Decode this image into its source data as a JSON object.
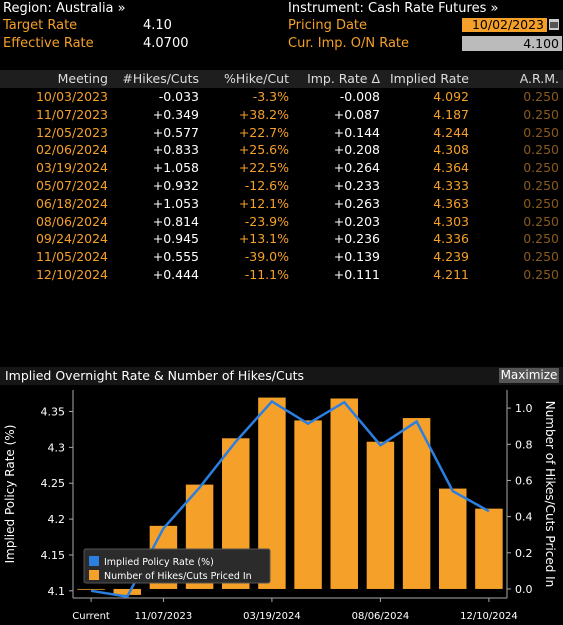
{
  "header": {
    "region_label": "Region: Australia »",
    "instrument_label": "Instrument: Cash Rate Futures »",
    "target_rate_label": "Target Rate",
    "target_rate_value": "4.10",
    "effective_rate_label": "Effective Rate",
    "effective_rate_value": "4.0700",
    "pricing_date_label": "Pricing Date",
    "pricing_date_value": "10/02/2023",
    "cur_imp_label": "Cur. Imp. O/N Rate",
    "cur_imp_value": "4.100"
  },
  "table": {
    "columns": [
      "Meeting",
      "#Hikes/Cuts",
      "%Hike/Cut",
      "Imp. Rate Δ",
      "Implied Rate",
      "A.R.M."
    ],
    "rows": [
      [
        "10/03/2023",
        "-0.033",
        "-3.3%",
        "-0.008",
        "4.092",
        "0.250"
      ],
      [
        "11/07/2023",
        "+0.349",
        "+38.2%",
        "+0.087",
        "4.187",
        "0.250"
      ],
      [
        "12/05/2023",
        "+0.577",
        "+22.7%",
        "+0.144",
        "4.244",
        "0.250"
      ],
      [
        "02/06/2024",
        "+0.833",
        "+25.6%",
        "+0.208",
        "4.308",
        "0.250"
      ],
      [
        "03/19/2024",
        "+1.058",
        "+22.5%",
        "+0.264",
        "4.364",
        "0.250"
      ],
      [
        "05/07/2024",
        "+0.932",
        "-12.6%",
        "+0.233",
        "4.333",
        "0.250"
      ],
      [
        "06/18/2024",
        "+1.053",
        "+12.1%",
        "+0.263",
        "4.363",
        "0.250"
      ],
      [
        "08/06/2024",
        "+0.814",
        "-23.9%",
        "+0.203",
        "4.303",
        "0.250"
      ],
      [
        "09/24/2024",
        "+0.945",
        "+13.1%",
        "+0.236",
        "4.336",
        "0.250"
      ],
      [
        "11/05/2024",
        "+0.555",
        "-39.0%",
        "+0.139",
        "4.239",
        "0.250"
      ],
      [
        "12/10/2024",
        "+0.444",
        "-11.1%",
        "+0.111",
        "4.211",
        "0.250"
      ]
    ]
  },
  "chart_panel": {
    "title": "Implied Overnight Rate & Number of Hikes/Cuts",
    "maximize_label": "Maximize"
  },
  "colors": {
    "orange": "#f5a028",
    "blue": "#2a7fe0",
    "background": "#000000"
  },
  "chart_data": {
    "type": "bar",
    "categories": [
      "Current",
      "10/03/2023",
      "11/07/2023",
      "12/05/2023",
      "02/06/2024",
      "03/19/2024",
      "05/07/2024",
      "06/18/2024",
      "08/06/2024",
      "09/24/2024",
      "11/05/2024",
      "12/10/2024"
    ],
    "x_tick_labels": [
      "Current",
      "11/07/2023",
      "03/19/2024",
      "08/06/2024",
      "12/10/2024"
    ],
    "series": [
      {
        "name": "Implied Policy Rate (%)",
        "kind": "line",
        "axis": "left",
        "color": "#2a7fe0",
        "values": [
          4.1,
          4.092,
          4.187,
          4.244,
          4.308,
          4.364,
          4.333,
          4.363,
          4.303,
          4.336,
          4.239,
          4.211
        ]
      },
      {
        "name": "Number of Hikes/Cuts Priced In",
        "kind": "bar",
        "axis": "right",
        "color": "#f5a028",
        "values": [
          0,
          -0.033,
          0.349,
          0.577,
          0.833,
          1.058,
          0.932,
          1.053,
          0.814,
          0.945,
          0.555,
          0.444
        ]
      }
    ],
    "ylabel_left": "Implied Policy Rate (%)",
    "ylabel_right": "Number of Hikes/Cuts Priced In",
    "ylim_left": [
      4.09,
      4.38
    ],
    "yticks_left": [
      "4.1",
      "4.15",
      "4.2",
      "4.25",
      "4.3",
      "4.35"
    ],
    "ylim_right": [
      -0.05,
      1.1
    ],
    "yticks_right": [
      "0.0",
      "0.2",
      "0.4",
      "0.6",
      "0.8",
      "1.0"
    ],
    "legend_position": "bottom-left",
    "grid": false
  }
}
